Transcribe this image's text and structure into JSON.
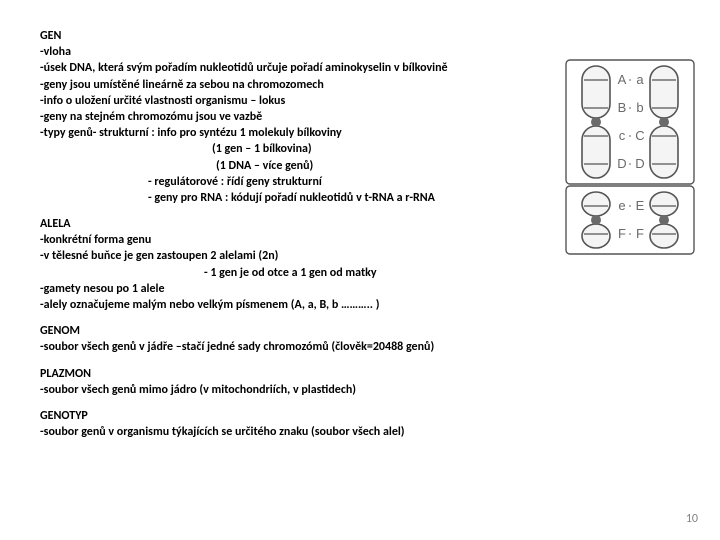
{
  "gen": {
    "title": "GEN",
    "l1": "-vloha",
    "l2": "-úsek DNA, která svým pořadím nukleotidů určuje pořadí aminokyselin v bílkovině",
    "l3": "-geny jsou umístěné lineárně za sebou na chromozomech",
    "l4": "-info o uložení určité vlastnosti organismu – lokus",
    "l5": "-geny na stejném chromozómu jsou ve vazbě",
    "l6": "-typy genů- strukturní : info pro  syntézu 1 molekuly bílkoviny",
    "l7": "(1 gen – 1 bílkovina)",
    "l8": "(1 DNA – více genů)",
    "l9": "- regulátorové : řídí geny strukturní",
    "l10": "- geny pro RNA : kódují pořadí nukleotidů v t-RNA  a  r-RNA"
  },
  "alela": {
    "title": "ALELA",
    "l1": "-konkrétní forma genu",
    "l2": "-v tělesné buňce je gen zastoupen 2 alelami (2n)",
    "l3": "- 1 gen je od otce a 1 gen od matky",
    "l4": "-gamety nesou po 1 alele",
    "l5": "-alely označujeme malým nebo velkým písmenem  (A, a, B, b ……….. )"
  },
  "genom": {
    "title": "GENOM",
    "l1": "-soubor všech genů v jádře –stačí jedné sady chromozómů   (člověk=20488 genů)"
  },
  "plazmon": {
    "title": "PLAZMON",
    "l1": "-soubor všech genů mimo jádro (v mitochondriích, v plastidech)"
  },
  "genotyp": {
    "title": "GENOTYP",
    "l1": "-soubor genů v organismu týkajících se určitého znaku (soubor všech alel)"
  },
  "page_number": "10",
  "diagram": {
    "pairs_top": [
      {
        "left": "A",
        "right": "a"
      },
      {
        "left": "B",
        "right": "b"
      },
      {
        "left": "c",
        "right": "C"
      },
      {
        "left": "D",
        "right": "D"
      }
    ],
    "pairs_bottom": [
      {
        "left": "e",
        "right": "E"
      },
      {
        "left": "F",
        "right": "F"
      }
    ],
    "colors": {
      "stroke": "#555555",
      "fill": "#f4f4f4",
      "dot": "#6a6a6a",
      "label": "#6a6a6a"
    }
  }
}
